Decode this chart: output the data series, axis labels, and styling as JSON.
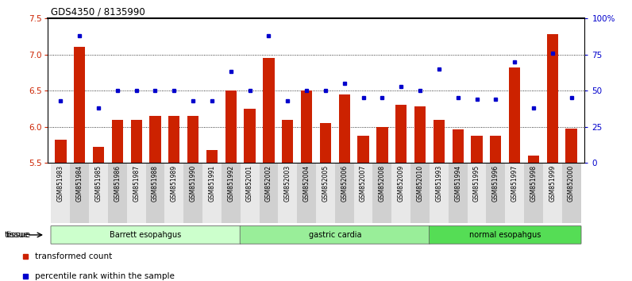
{
  "title": "GDS4350 / 8135990",
  "samples": [
    "GSM851983",
    "GSM851984",
    "GSM851985",
    "GSM851986",
    "GSM851987",
    "GSM851988",
    "GSM851989",
    "GSM851990",
    "GSM851991",
    "GSM851992",
    "GSM852001",
    "GSM852002",
    "GSM852003",
    "GSM852004",
    "GSM852005",
    "GSM852006",
    "GSM852007",
    "GSM852008",
    "GSM852009",
    "GSM852010",
    "GSM851993",
    "GSM851994",
    "GSM851995",
    "GSM851996",
    "GSM851997",
    "GSM851998",
    "GSM851999",
    "GSM852000"
  ],
  "bar_values": [
    5.82,
    7.1,
    5.72,
    6.1,
    6.1,
    6.15,
    6.15,
    6.15,
    5.68,
    6.5,
    6.25,
    6.95,
    6.1,
    6.5,
    6.05,
    6.45,
    5.88,
    6.0,
    6.3,
    6.28,
    6.1,
    5.96,
    5.88,
    5.88,
    6.82,
    5.6,
    7.28,
    5.98
  ],
  "percentile_values": [
    43,
    88,
    38,
    50,
    50,
    50,
    50,
    43,
    43,
    63,
    50,
    88,
    43,
    50,
    50,
    55,
    45,
    45,
    53,
    50,
    65,
    45,
    44,
    44,
    70,
    38,
    76,
    45
  ],
  "groups": [
    {
      "label": "Barrett esopahgus",
      "start": 0,
      "end": 10,
      "color": "#ccffcc"
    },
    {
      "label": "gastric cardia",
      "start": 10,
      "end": 20,
      "color": "#99ee99"
    },
    {
      "label": "normal esopahgus",
      "start": 20,
      "end": 28,
      "color": "#55dd55"
    }
  ],
  "tissue_label": "tissue",
  "ylim_left": [
    5.5,
    7.5
  ],
  "yticks_left": [
    5.5,
    6.0,
    6.5,
    7.0,
    7.5
  ],
  "ylim_right": [
    0,
    100
  ],
  "yticks_right": [
    0,
    25,
    50,
    75,
    100
  ],
  "ytick_labels_right": [
    "0",
    "25",
    "50",
    "75",
    "100%"
  ],
  "bar_color": "#cc2200",
  "dot_color": "#0000cc",
  "bar_width": 0.6,
  "left_label_color": "#cc2200",
  "right_label_color": "#0000cc",
  "legend_items": [
    {
      "color": "#cc2200",
      "label": "transformed count"
    },
    {
      "color": "#0000cc",
      "label": "percentile rank within the sample"
    }
  ],
  "bg_color": "#ffffff"
}
